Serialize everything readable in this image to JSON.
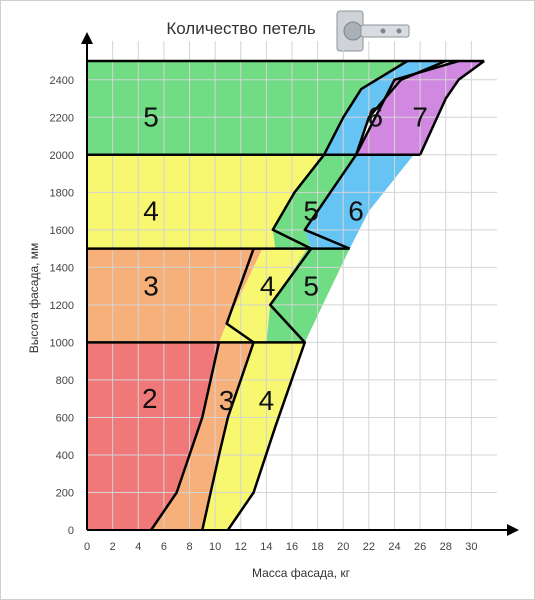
{
  "chart_data": {
    "type": "area",
    "title": "Количество петель",
    "xlabel": "Масса фасада, кг",
    "ylabel": "Высота фасада, мм",
    "xlim": [
      0,
      32
    ],
    "ylim": [
      0,
      2500
    ],
    "xticks": [
      0,
      2,
      4,
      6,
      8,
      10,
      12,
      14,
      16,
      18,
      20,
      22,
      24,
      26,
      28,
      30
    ],
    "yticks": [
      0,
      200,
      400,
      600,
      800,
      1000,
      1200,
      1400,
      1600,
      1800,
      2000,
      2200,
      2400
    ],
    "grid": true,
    "height_bands": [
      1000,
      1500,
      2000,
      2500
    ],
    "boundaries": [
      {
        "name": "2|3",
        "points": [
          [
            5,
            0
          ],
          [
            7,
            200
          ],
          [
            9,
            600
          ],
          [
            10.3,
            1000
          ]
        ]
      },
      {
        "name": "3|4",
        "points": [
          [
            9,
            0
          ],
          [
            10.3,
            400
          ],
          [
            11,
            600
          ],
          [
            12,
            800
          ],
          [
            13,
            1000
          ],
          [
            10.9,
            1100
          ],
          [
            13,
            1500
          ]
        ]
      },
      {
        "name": "4|5",
        "points": [
          [
            11,
            0
          ],
          [
            13,
            200
          ],
          [
            14.7,
            550
          ],
          [
            17,
            1000
          ],
          [
            14.3,
            1200
          ],
          [
            17.5,
            1500
          ],
          [
            14.5,
            1600
          ],
          [
            16.2,
            1800
          ],
          [
            18.5,
            2000
          ],
          [
            20,
            2200
          ],
          [
            21.4,
            2350
          ],
          [
            25,
            2500
          ]
        ]
      },
      {
        "name": "5|6",
        "points": [
          [
            20.5,
            1500
          ],
          [
            17,
            1600
          ],
          [
            19,
            1800
          ],
          [
            21,
            2000
          ],
          [
            22,
            2200
          ],
          [
            24.5,
            2400
          ],
          [
            28,
            2500
          ]
        ]
      },
      {
        "name": "6|7",
        "points": [
          [
            25.5,
            2000
          ],
          [
            21,
            2000
          ],
          [
            22.5,
            2200
          ],
          [
            24,
            2400
          ],
          [
            29,
            2500
          ]
        ]
      },
      {
        "name": "7|end",
        "points": [
          [
            26,
            2000
          ],
          [
            28,
            2300
          ],
          [
            29,
            2400
          ],
          [
            31,
            2500
          ]
        ]
      }
    ],
    "zones": [
      {
        "name": "2",
        "label": "2",
        "color": "#f07878",
        "label_at": [
          4.9,
          690
        ],
        "points": [
          [
            0,
            0
          ],
          [
            5,
            0
          ],
          [
            7,
            200
          ],
          [
            9,
            600
          ],
          [
            10.3,
            1000
          ],
          [
            0,
            1000
          ]
        ]
      },
      {
        "name": "3 (0-1000)",
        "label": "3",
        "color": "#f8b07a",
        "label_at": [
          10.9,
          680
        ],
        "points": [
          [
            5,
            0
          ],
          [
            9,
            0
          ],
          [
            10.3,
            400
          ],
          [
            11,
            600
          ],
          [
            12,
            800
          ],
          [
            13,
            1000
          ],
          [
            10.3,
            1000
          ],
          [
            9,
            600
          ],
          [
            7,
            200
          ]
        ]
      },
      {
        "name": "3 (1000-1500)",
        "label": "3",
        "color": "#f8b07a",
        "label_at": [
          5,
          1290
        ],
        "points": [
          [
            0,
            1000
          ],
          [
            10.3,
            1000
          ],
          [
            10.9,
            1100
          ],
          [
            13.7,
            1500
          ],
          [
            0,
            1500
          ]
        ]
      },
      {
        "name": "4 (0-1000)",
        "label": "4",
        "color": "#f8f870",
        "label_at": [
          14,
          680
        ],
        "points": [
          [
            9,
            0
          ],
          [
            11,
            0
          ],
          [
            13,
            200
          ],
          [
            14.7,
            550
          ],
          [
            17,
            1000
          ],
          [
            13,
            1000
          ],
          [
            12,
            800
          ],
          [
            11,
            600
          ],
          [
            10.3,
            400
          ]
        ]
      },
      {
        "name": "4 (1000-1500)",
        "label": "4",
        "color": "#f8f870",
        "label_at": [
          14.1,
          1290
        ],
        "points": [
          [
            10.3,
            1000
          ],
          [
            14,
            1000
          ],
          [
            14.3,
            1200
          ],
          [
            17.2,
            1500
          ],
          [
            13.7,
            1500
          ],
          [
            10.9,
            1100
          ]
        ]
      },
      {
        "name": "4 (1500-2000)",
        "label": "4",
        "color": "#f8f870",
        "label_at": [
          5,
          1690
        ],
        "points": [
          [
            0,
            1500
          ],
          [
            14.7,
            1500
          ],
          [
            14.5,
            1600
          ],
          [
            16.2,
            1800
          ],
          [
            18.5,
            2000
          ],
          [
            0,
            2000
          ]
        ]
      },
      {
        "name": "5 (1000-1500)",
        "label": "5",
        "color": "#70dc84",
        "label_at": [
          17.5,
          1290
        ],
        "points": [
          [
            14,
            1000
          ],
          [
            17,
            1000
          ],
          [
            20.5,
            1500
          ],
          [
            17.2,
            1500
          ],
          [
            14.3,
            1200
          ]
        ]
      },
      {
        "name": "5 (1500-2000)",
        "label": "5",
        "color": "#70dc84",
        "label_at": [
          17.5,
          1690
        ],
        "points": [
          [
            14.7,
            1500
          ],
          [
            17.5,
            1500
          ],
          [
            17,
            1600
          ],
          [
            19,
            1800
          ],
          [
            21,
            2000
          ],
          [
            18.5,
            2000
          ],
          [
            16.2,
            1800
          ],
          [
            14.5,
            1600
          ]
        ]
      },
      {
        "name": "5 (2000-2500)",
        "label": "5",
        "color": "#70dc84",
        "label_at": [
          5,
          2190
        ],
        "points": [
          [
            0,
            2000
          ],
          [
            18.5,
            2000
          ],
          [
            20,
            2200
          ],
          [
            21.4,
            2350
          ],
          [
            25,
            2500
          ],
          [
            0,
            2500
          ]
        ]
      },
      {
        "name": "6 (1500-2000)",
        "label": "6",
        "color": "#66c4f4",
        "label_at": [
          21,
          1690
        ],
        "points": [
          [
            17.5,
            1500
          ],
          [
            20.5,
            1500
          ],
          [
            22,
            1700
          ],
          [
            25.5,
            2000
          ],
          [
            21,
            2000
          ],
          [
            19,
            1800
          ],
          [
            17,
            1600
          ]
        ]
      },
      {
        "name": "6 (2000-2500)",
        "label": "6",
        "color": "#66c4f4",
        "label_at": [
          22.5,
          2190
        ],
        "points": [
          [
            18.5,
            2000
          ],
          [
            21,
            2000
          ],
          [
            22,
            2200
          ],
          [
            24.5,
            2400
          ],
          [
            28,
            2500
          ],
          [
            25,
            2500
          ],
          [
            21.4,
            2350
          ],
          [
            20,
            2200
          ]
        ]
      },
      {
        "name": "7 (2000-2500)",
        "label": "7",
        "color": "#d088e0",
        "label_at": [
          26,
          2190
        ],
        "points": [
          [
            21,
            2000
          ],
          [
            26,
            2000
          ],
          [
            28,
            2300
          ],
          [
            29,
            2400
          ],
          [
            31,
            2500
          ],
          [
            29,
            2500
          ],
          [
            24,
            2400
          ],
          [
            22.5,
            2200
          ]
        ]
      }
    ]
  },
  "colors": {
    "grid": "#d4d4d4",
    "axis": "#000000",
    "boundary": "#000000"
  },
  "icons": {
    "title_image": "furniture-hinge-icon"
  }
}
